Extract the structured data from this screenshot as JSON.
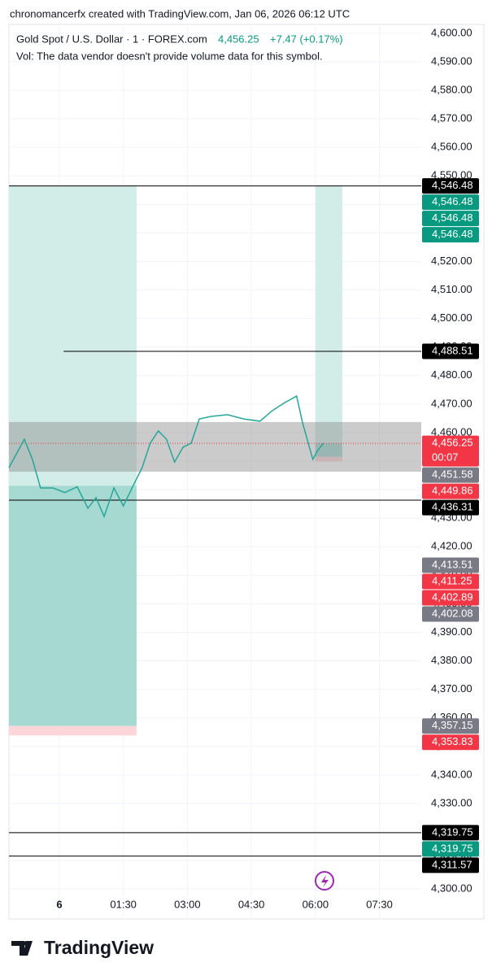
{
  "chart_data": {
    "type": "line",
    "attribution": "chronomancerfx created with TradingView.com, Jan 06, 2026 06:12 UTC",
    "title": "Gold Spot / U.S. Dollar · 1 · FOREX.com",
    "last_price_text": "4,456.25",
    "change_text": "+7.47 (+0.17%)",
    "subtitle": "Vol: The data vendor doesn't provide volume data for this symbol.",
    "brand": "TradingView",
    "grid": true,
    "xlim": [
      -1.18,
      8.48
    ],
    "ylim": [
      4289.5,
      4603.1
    ],
    "xticks": [
      {
        "value": 0,
        "label": "6"
      },
      {
        "value": 1.5,
        "label": "01:30"
      },
      {
        "value": 3,
        "label": "03:00"
      },
      {
        "value": 4.5,
        "label": "04:30"
      },
      {
        "value": 6,
        "label": "06:00"
      },
      {
        "value": 7.5,
        "label": "07:30"
      }
    ],
    "yticks": [
      {
        "value": 4300,
        "label": "4,300.00"
      },
      {
        "value": 4310,
        "label": "4,310.00"
      },
      {
        "value": 4320,
        "label": "4,320.00"
      },
      {
        "value": 4330,
        "label": "4,330.00"
      },
      {
        "value": 4340,
        "label": "4,340.00"
      },
      {
        "value": 4350,
        "label": "4,350.00"
      },
      {
        "value": 4360,
        "label": "4,360.00"
      },
      {
        "value": 4370,
        "label": "4,370.00"
      },
      {
        "value": 4380,
        "label": "4,380.00"
      },
      {
        "value": 4390,
        "label": "4,390.00"
      },
      {
        "value": 4400,
        "label": "4,400.00"
      },
      {
        "value": 4410,
        "label": "4,410.00"
      },
      {
        "value": 4420,
        "label": "4,420.00"
      },
      {
        "value": 4430,
        "label": "4,430.00"
      },
      {
        "value": 4440,
        "label": "4,440.00"
      },
      {
        "value": 4450,
        "label": "4,450.00"
      },
      {
        "value": 4460,
        "label": "4,460.00"
      },
      {
        "value": 4470,
        "label": "4,470.00"
      },
      {
        "value": 4480,
        "label": "4,480.00"
      },
      {
        "value": 4490,
        "label": "4,490.00"
      },
      {
        "value": 4500,
        "label": "4,500.00"
      },
      {
        "value": 4510,
        "label": "4,510.00"
      },
      {
        "value": 4520,
        "label": "4,520.00"
      },
      {
        "value": 4530,
        "label": "4,530.00"
      },
      {
        "value": 4540,
        "label": "4,540.00"
      },
      {
        "value": 4550,
        "label": "4,550.00"
      },
      {
        "value": 4560,
        "label": "4,560.00"
      },
      {
        "value": 4570,
        "label": "4,570.00"
      },
      {
        "value": 4580,
        "label": "4,580.00"
      },
      {
        "value": 4590,
        "label": "4,590.00"
      },
      {
        "value": 4600,
        "label": "4,600.00"
      }
    ],
    "series": [
      {
        "color": "#26a69a",
        "x": [
          -1.18,
          -0.82,
          -0.63,
          -0.44,
          -0.15,
          0.13,
          0.42,
          0.67,
          0.86,
          1.05,
          1.28,
          1.5,
          1.75,
          1.94,
          2.13,
          2.32,
          2.51,
          2.7,
          2.9,
          3.09,
          3.28,
          3.56,
          3.94,
          4.32,
          4.7,
          4.99,
          5.28,
          5.56,
          5.7,
          5.94,
          6.04,
          6.19
        ],
        "values": [
          4447.7,
          4457.7,
          4450.6,
          4440.6,
          4440.6,
          4439,
          4441,
          4433.5,
          4437.2,
          4430.6,
          4440.6,
          4434.3,
          4442,
          4447.7,
          4456.3,
          4460.6,
          4457.7,
          4449.7,
          4454.9,
          4456.3,
          4464.8,
          4465.7,
          4466.3,
          4464.8,
          4464,
          4467.7,
          4470.5,
          4472.8,
          4463.4,
          4450.6,
          4453.5,
          4456.3
        ]
      }
    ],
    "zones": [
      {
        "x": [
          -1.18,
          1.81
        ],
        "y": [
          4546.48,
          4441.4
        ],
        "color": "#d2ece8"
      },
      {
        "x": [
          -1.18,
          1.81
        ],
        "y": [
          4441.4,
          4357.15
        ],
        "color": "#a6d9d2"
      },
      {
        "x": [
          -1.18,
          1.81
        ],
        "y": [
          4357.15,
          4353.83
        ],
        "color": "#fbd5d7"
      },
      {
        "x": [
          6.0,
          6.63
        ],
        "y": [
          4546.48,
          4456.25
        ],
        "color": "#d2ece8"
      },
      {
        "x": [
          6.0,
          6.63
        ],
        "y": [
          4456.25,
          4451.58
        ],
        "color": "#a6d9d2"
      },
      {
        "x": [
          6.0,
          6.63
        ],
        "y": [
          4451.58,
          4449.86
        ],
        "color": "#fbd5d7"
      },
      {
        "x": [
          -1.18,
          8.48
        ],
        "y": [
          4463.7,
          4446.3
        ],
        "color": "rgba(140,140,140,0.45)"
      }
    ],
    "levels": [
      {
        "value": 4546.48,
        "x": [
          -1.18,
          8.48
        ]
      },
      {
        "value": 4488.51,
        "x": [
          0.1,
          8.48
        ]
      },
      {
        "value": 4436.31,
        "x": [
          -1.18,
          8.48
        ]
      },
      {
        "value": 4319.75,
        "x": [
          -1.18,
          8.48
        ]
      },
      {
        "value": 4311.57,
        "x": [
          -1.18,
          8.48
        ]
      }
    ],
    "current_price": 4456.25,
    "price_labels": [
      {
        "value": 4546.48,
        "label": "4,546.48",
        "color": "#000000"
      },
      {
        "value": 4546.48,
        "label": "4,546.48",
        "color": "#089981"
      },
      {
        "value": 4546.48,
        "label": "4,546.48",
        "color": "#089981"
      },
      {
        "value": 4546.48,
        "label": "4,546.48",
        "color": "#089981"
      },
      {
        "value": 4488.51,
        "label": "4,488.51",
        "color": "#000000"
      },
      {
        "value": 4456.25,
        "label": "4,456.25",
        "color": "#f23645",
        "sub": "00:07"
      },
      {
        "value": 4451.58,
        "label": "4,451.58",
        "color": "#787b86"
      },
      {
        "value": 4449.86,
        "label": "4,449.86",
        "color": "#f23645"
      },
      {
        "value": 4436.31,
        "label": "4,436.31",
        "color": "#000000"
      },
      {
        "value": 4413.51,
        "label": "4,413.51",
        "color": "#787b86"
      },
      {
        "value": 4411.25,
        "label": "4,411.25",
        "color": "#f23645"
      },
      {
        "value": 4402.89,
        "label": "4,402.89",
        "color": "#f23645"
      },
      {
        "value": 4402.08,
        "label": "4,402.08",
        "color": "#787b86"
      },
      {
        "value": 4357.15,
        "label": "4,357.15",
        "color": "#787b86"
      },
      {
        "value": 4353.83,
        "label": "4,353.83",
        "color": "#f23645"
      },
      {
        "value": 4319.75,
        "label": "4,319.75",
        "color": "#000000"
      },
      {
        "value": 4319.75,
        "label": "4,319.75",
        "color": "#089981"
      },
      {
        "value": 4311.57,
        "label": "4,311.57",
        "color": "#000000"
      }
    ]
  }
}
